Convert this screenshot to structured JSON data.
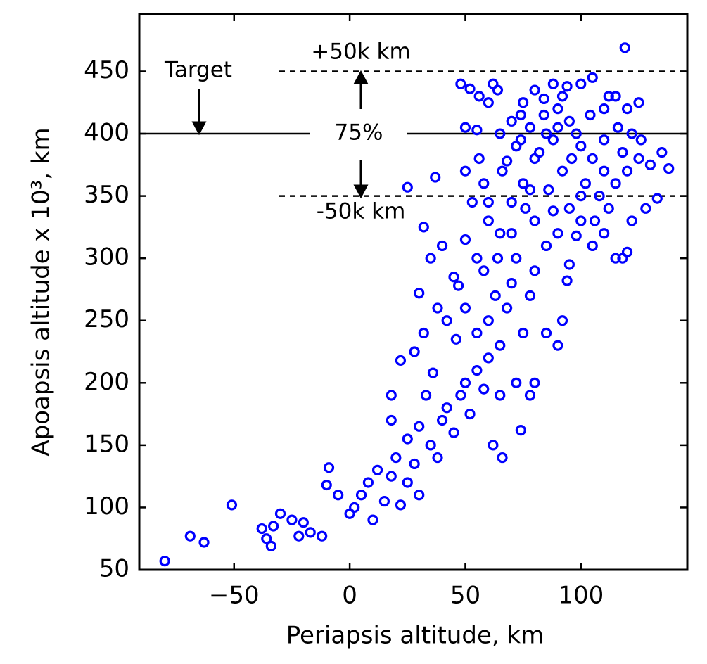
{
  "chart_data": {
    "type": "scatter",
    "xlabel": "Periapsis altitude, km",
    "ylabel": "Apoapsis altitude x 10³, km",
    "xlim": [
      -91,
      146
    ],
    "ylim": [
      50,
      496
    ],
    "xticks": [
      {
        "value": -50,
        "label": "−50"
      },
      0,
      50,
      100
    ],
    "yticks": [
      50,
      100,
      150,
      200,
      250,
      300,
      350,
      400,
      450
    ],
    "reference_lines": [
      {
        "value": 400,
        "style": "solid"
      },
      {
        "value": 450,
        "style": "dashed"
      },
      {
        "value": 350,
        "style": "dashed"
      }
    ],
    "annotations": {
      "target": "Target",
      "upper": "+50k km",
      "lower": "-50k km",
      "fraction": "75%"
    },
    "series": [
      {
        "color": "#0000ff",
        "x": [
          -80,
          -69,
          -63,
          -51,
          -34,
          -36,
          -38,
          -33,
          -30,
          -25,
          -22,
          -20,
          -17,
          -12,
          -10,
          -9,
          -5,
          0,
          2,
          5,
          8,
          10,
          12,
          15,
          18,
          20,
          22,
          25,
          28,
          30,
          25,
          30,
          35,
          38,
          40,
          42,
          45,
          48,
          50,
          52,
          55,
          58,
          60,
          22,
          28,
          32,
          38,
          42,
          46,
          50,
          55,
          60,
          63,
          65,
          68,
          70,
          72,
          75,
          78,
          80,
          30,
          35,
          40,
          45,
          50,
          55,
          60,
          65,
          58,
          47,
          32,
          37,
          25,
          18,
          18,
          33,
          36,
          65,
          72,
          74,
          62,
          66,
          78,
          80,
          85,
          90,
          92,
          94,
          95,
          100,
          105,
          110,
          115,
          118,
          120,
          100,
          95,
          90,
          85,
          80,
          70,
          75,
          80,
          85,
          90,
          95,
          100,
          105,
          110,
          115,
          120,
          125,
          130,
          135,
          138,
          133,
          128,
          122,
          65,
          70,
          75,
          80,
          88,
          92,
          100,
          105,
          110,
          115,
          120,
          125,
          119,
          62,
          55,
          50,
          50,
          56,
          58,
          60,
          53,
          66,
          72,
          78,
          84,
          88,
          96,
          102,
          108,
          112,
          98,
          92,
          86,
          76,
          70,
          64,
          68,
          74,
          82,
          90,
          104,
          110,
          118,
          126,
          106,
          98,
          88,
          78,
          84,
          94,
          74,
          60,
          56,
          48,
          52,
          64,
          112,
          116,
          122
        ],
        "y": [
          57,
          77,
          72,
          102,
          69,
          75,
          83,
          85,
          95,
          90,
          77,
          88,
          80,
          77,
          118,
          132,
          110,
          95,
          100,
          110,
          120,
          90,
          130,
          105,
          125,
          140,
          102,
          120,
          135,
          110,
          155,
          165,
          150,
          140,
          170,
          180,
          160,
          190,
          200,
          175,
          210,
          195,
          220,
          218,
          225,
          240,
          260,
          250,
          235,
          260,
          240,
          250,
          270,
          230,
          260,
          280,
          300,
          240,
          270,
          290,
          272,
          300,
          310,
          285,
          315,
          300,
          330,
          320,
          290,
          278,
          325,
          365,
          357,
          190,
          170,
          190,
          208,
          190,
          200,
          162,
          150,
          140,
          190,
          200,
          240,
          230,
          250,
          282,
          295,
          330,
          310,
          320,
          300,
          300,
          305,
          350,
          340,
          320,
          310,
          330,
          345,
          360,
          380,
          400,
          420,
          410,
          390,
          380,
          370,
          360,
          370,
          380,
          375,
          385,
          372,
          348,
          340,
          330,
          400,
          410,
          425,
          435,
          440,
          430,
          440,
          445,
          420,
          430,
          420,
          425,
          469,
          440,
          403,
          405,
          370,
          380,
          360,
          345,
          345,
          370,
          390,
          405,
          415,
          395,
          380,
          360,
          350,
          340,
          400,
          370,
          355,
          340,
          320,
          300,
          378,
          395,
          385,
          405,
          415,
          395,
          385,
          395,
          330,
          318,
          338,
          355,
          428,
          438,
          415,
          425,
          430,
          440,
          436,
          435,
          430,
          405,
          400
        ]
      }
    ]
  }
}
